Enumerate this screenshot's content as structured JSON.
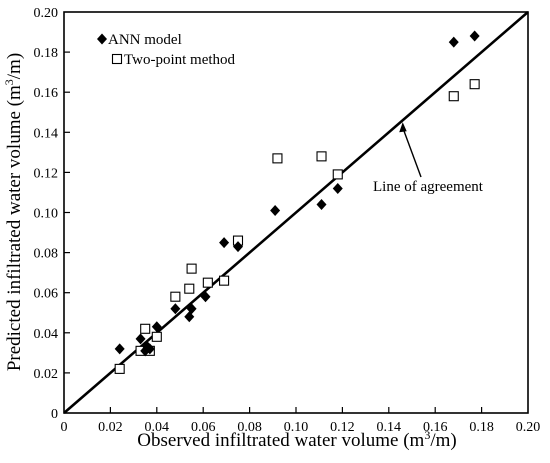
{
  "chart_data": {
    "type": "scatter",
    "xlabel": "Observed infiltrated water volume (m",
    "xlabel_sup": "3",
    "xlabel_end": "/m)",
    "ylabel": "Predicted infiltrated water volume (m",
    "ylabel_sup": "3",
    "ylabel_end": "/m)",
    "xlim": [
      0,
      0.2
    ],
    "ylim": [
      0,
      0.2
    ],
    "xticks": [
      "0",
      "0.02",
      "0.04",
      "0.06",
      "0.08",
      "0.10",
      "0.12",
      "0.14",
      "0.16",
      "0.18",
      "0.20"
    ],
    "yticks": [
      "0",
      "0.02",
      "0.04",
      "0.06",
      "0.08",
      "0.10",
      "0.12",
      "0.14",
      "0.16",
      "0.18",
      "0.20"
    ],
    "grid": false,
    "legend_position": "top-left",
    "series": [
      {
        "name": "ANN model",
        "marker": "filled-diamond",
        "points": [
          [
            0.024,
            0.032
          ],
          [
            0.033,
            0.037
          ],
          [
            0.035,
            0.031
          ],
          [
            0.036,
            0.033
          ],
          [
            0.037,
            0.032
          ],
          [
            0.04,
            0.043
          ],
          [
            0.048,
            0.052
          ],
          [
            0.054,
            0.048
          ],
          [
            0.055,
            0.052
          ],
          [
            0.061,
            0.058
          ],
          [
            0.069,
            0.085
          ],
          [
            0.075,
            0.083
          ],
          [
            0.091,
            0.101
          ],
          [
            0.111,
            0.104
          ],
          [
            0.118,
            0.112
          ],
          [
            0.168,
            0.185
          ],
          [
            0.177,
            0.188
          ]
        ]
      },
      {
        "name": "Two-point method",
        "marker": "open-square",
        "points": [
          [
            0.024,
            0.022
          ],
          [
            0.033,
            0.031
          ],
          [
            0.035,
            0.042
          ],
          [
            0.037,
            0.031
          ],
          [
            0.04,
            0.038
          ],
          [
            0.048,
            0.058
          ],
          [
            0.054,
            0.062
          ],
          [
            0.055,
            0.072
          ],
          [
            0.062,
            0.065
          ],
          [
            0.069,
            0.066
          ],
          [
            0.075,
            0.086
          ],
          [
            0.092,
            0.127
          ],
          [
            0.111,
            0.128
          ],
          [
            0.118,
            0.119
          ],
          [
            0.168,
            0.158
          ],
          [
            0.177,
            0.164
          ]
        ]
      }
    ],
    "reference_line": {
      "from": [
        0,
        0
      ],
      "to": [
        0.2,
        0.2
      ]
    },
    "annotation": {
      "text": "Line of agreement",
      "arrow_target": [
        0.146,
        0.145
      ]
    },
    "colors": {
      "marker": "#000000",
      "line": "#000000"
    }
  }
}
